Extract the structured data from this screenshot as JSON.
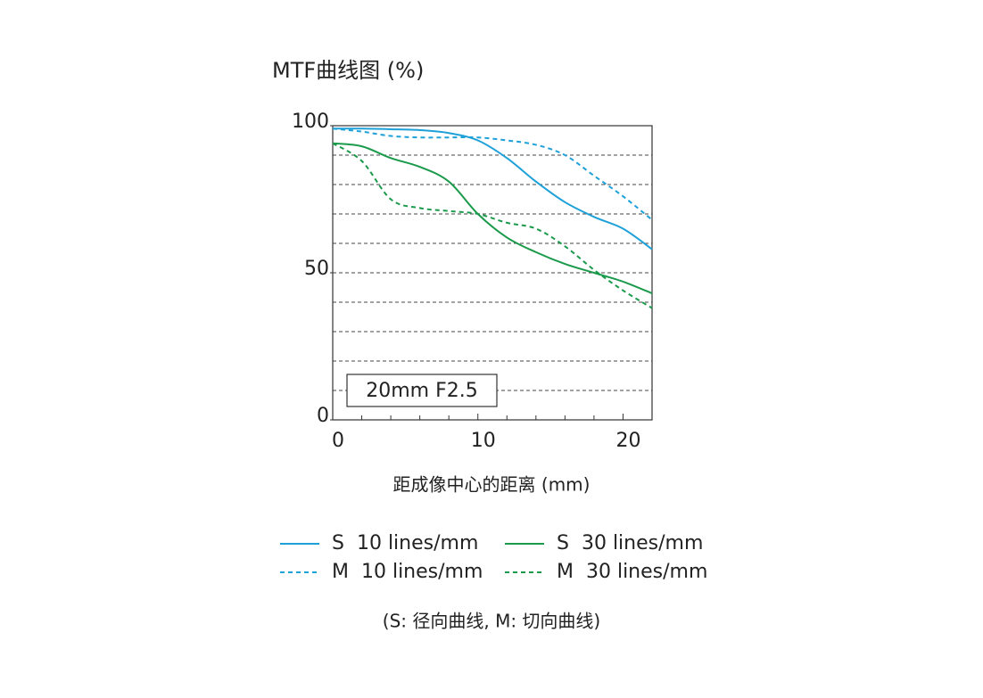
{
  "chart_data": {
    "type": "line",
    "title": "MTF曲线图 (%)",
    "x_label": "距成像中心的距离 (mm)",
    "annotation": "20mm F2.5",
    "note": "(S: 径向曲线, M: 切向曲线)",
    "x": [
      0,
      2,
      4,
      6,
      8,
      10,
      12,
      14,
      16,
      18,
      20,
      22
    ],
    "xlim": [
      0,
      22
    ],
    "xticks": [
      0,
      10,
      20
    ],
    "xminorticks": [
      2,
      4,
      6,
      8,
      12,
      14,
      16,
      18
    ],
    "ylim": [
      0,
      100
    ],
    "yticks": [
      0,
      50,
      100
    ],
    "ygrid": [
      10,
      20,
      30,
      40,
      50,
      60,
      70,
      80,
      90
    ],
    "series": [
      {
        "name": "S  10 lines/mm",
        "color": "#1ea0d8",
        "dash": false,
        "values": [
          99,
          99,
          98.8,
          98.5,
          97.5,
          95,
          89,
          81,
          74,
          69,
          65,
          58
        ]
      },
      {
        "name": "M  10 lines/mm",
        "color": "#1ea0d8",
        "dash": true,
        "values": [
          99,
          98,
          96.5,
          96,
          96,
          96,
          95,
          93.5,
          90,
          83,
          76,
          68
        ]
      },
      {
        "name": "S  30 lines/mm",
        "color": "#1a9a4a",
        "dash": false,
        "values": [
          94,
          93,
          89,
          86,
          81,
          70,
          62,
          57,
          53,
          50,
          47,
          43
        ]
      },
      {
        "name": "M  30 lines/mm",
        "color": "#1a9a4a",
        "dash": true,
        "values": [
          94,
          88,
          75,
          72,
          71,
          70,
          67,
          65,
          59,
          51,
          44,
          38
        ]
      }
    ]
  }
}
